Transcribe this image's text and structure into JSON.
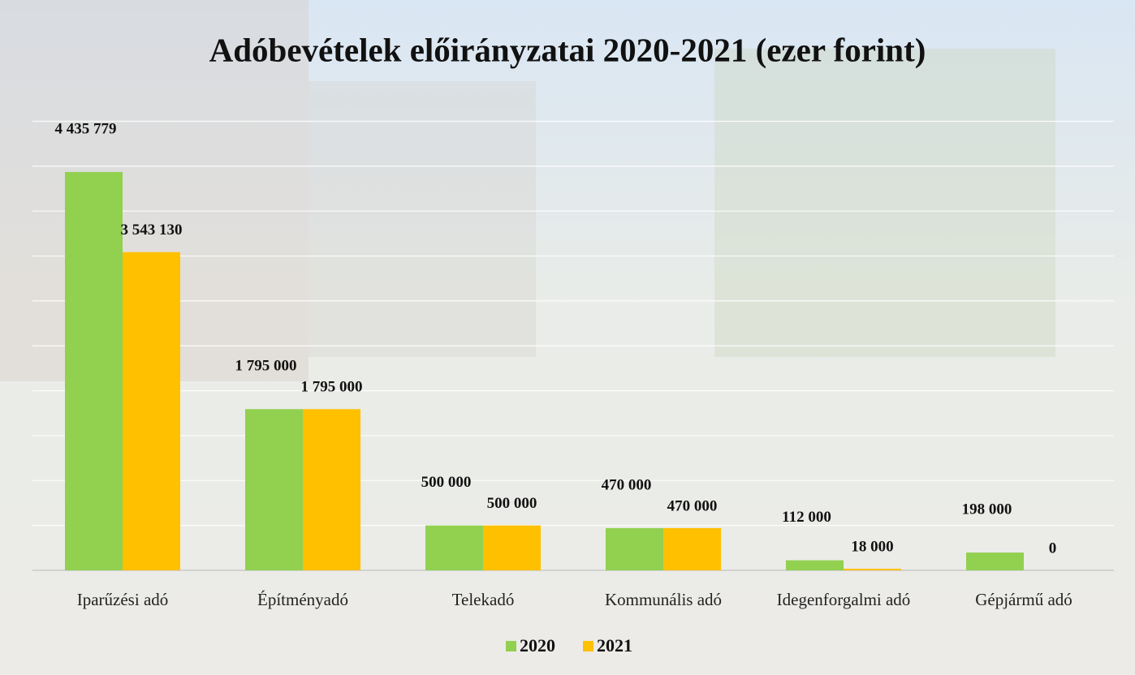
{
  "chart_data": {
    "type": "bar",
    "title": "Adóbevételek előirányzatai 2020-2021 (ezer forint)",
    "categories": [
      "Iparűzési adó",
      "Építményadó",
      "Telekadó",
      "Kommunális adó",
      "Idegenforgalmi adó",
      "Gépjármű adó"
    ],
    "series": [
      {
        "name": "2020",
        "color": "#92d050",
        "values": [
          4435779,
          1795000,
          500000,
          470000,
          112000,
          198000
        ],
        "value_labels": [
          "4 435 779",
          "1 795 000",
          "500 000",
          "470 000",
          "112 000",
          "198 000"
        ]
      },
      {
        "name": "2021",
        "color": "#ffc000",
        "values": [
          3543130,
          1795000,
          500000,
          470000,
          18000,
          0
        ],
        "value_labels": [
          "3 543 130",
          "1 795 000",
          "500 000",
          "470 000",
          "18 000",
          "0"
        ]
      }
    ],
    "ylim": [
      0,
      5000000
    ],
    "yticks": [
      0,
      500000,
      1000000,
      1500000,
      2000000,
      2500000,
      3000000,
      3500000,
      4000000,
      4500000,
      5000000
    ],
    "grid": true,
    "legend": "bottom"
  }
}
